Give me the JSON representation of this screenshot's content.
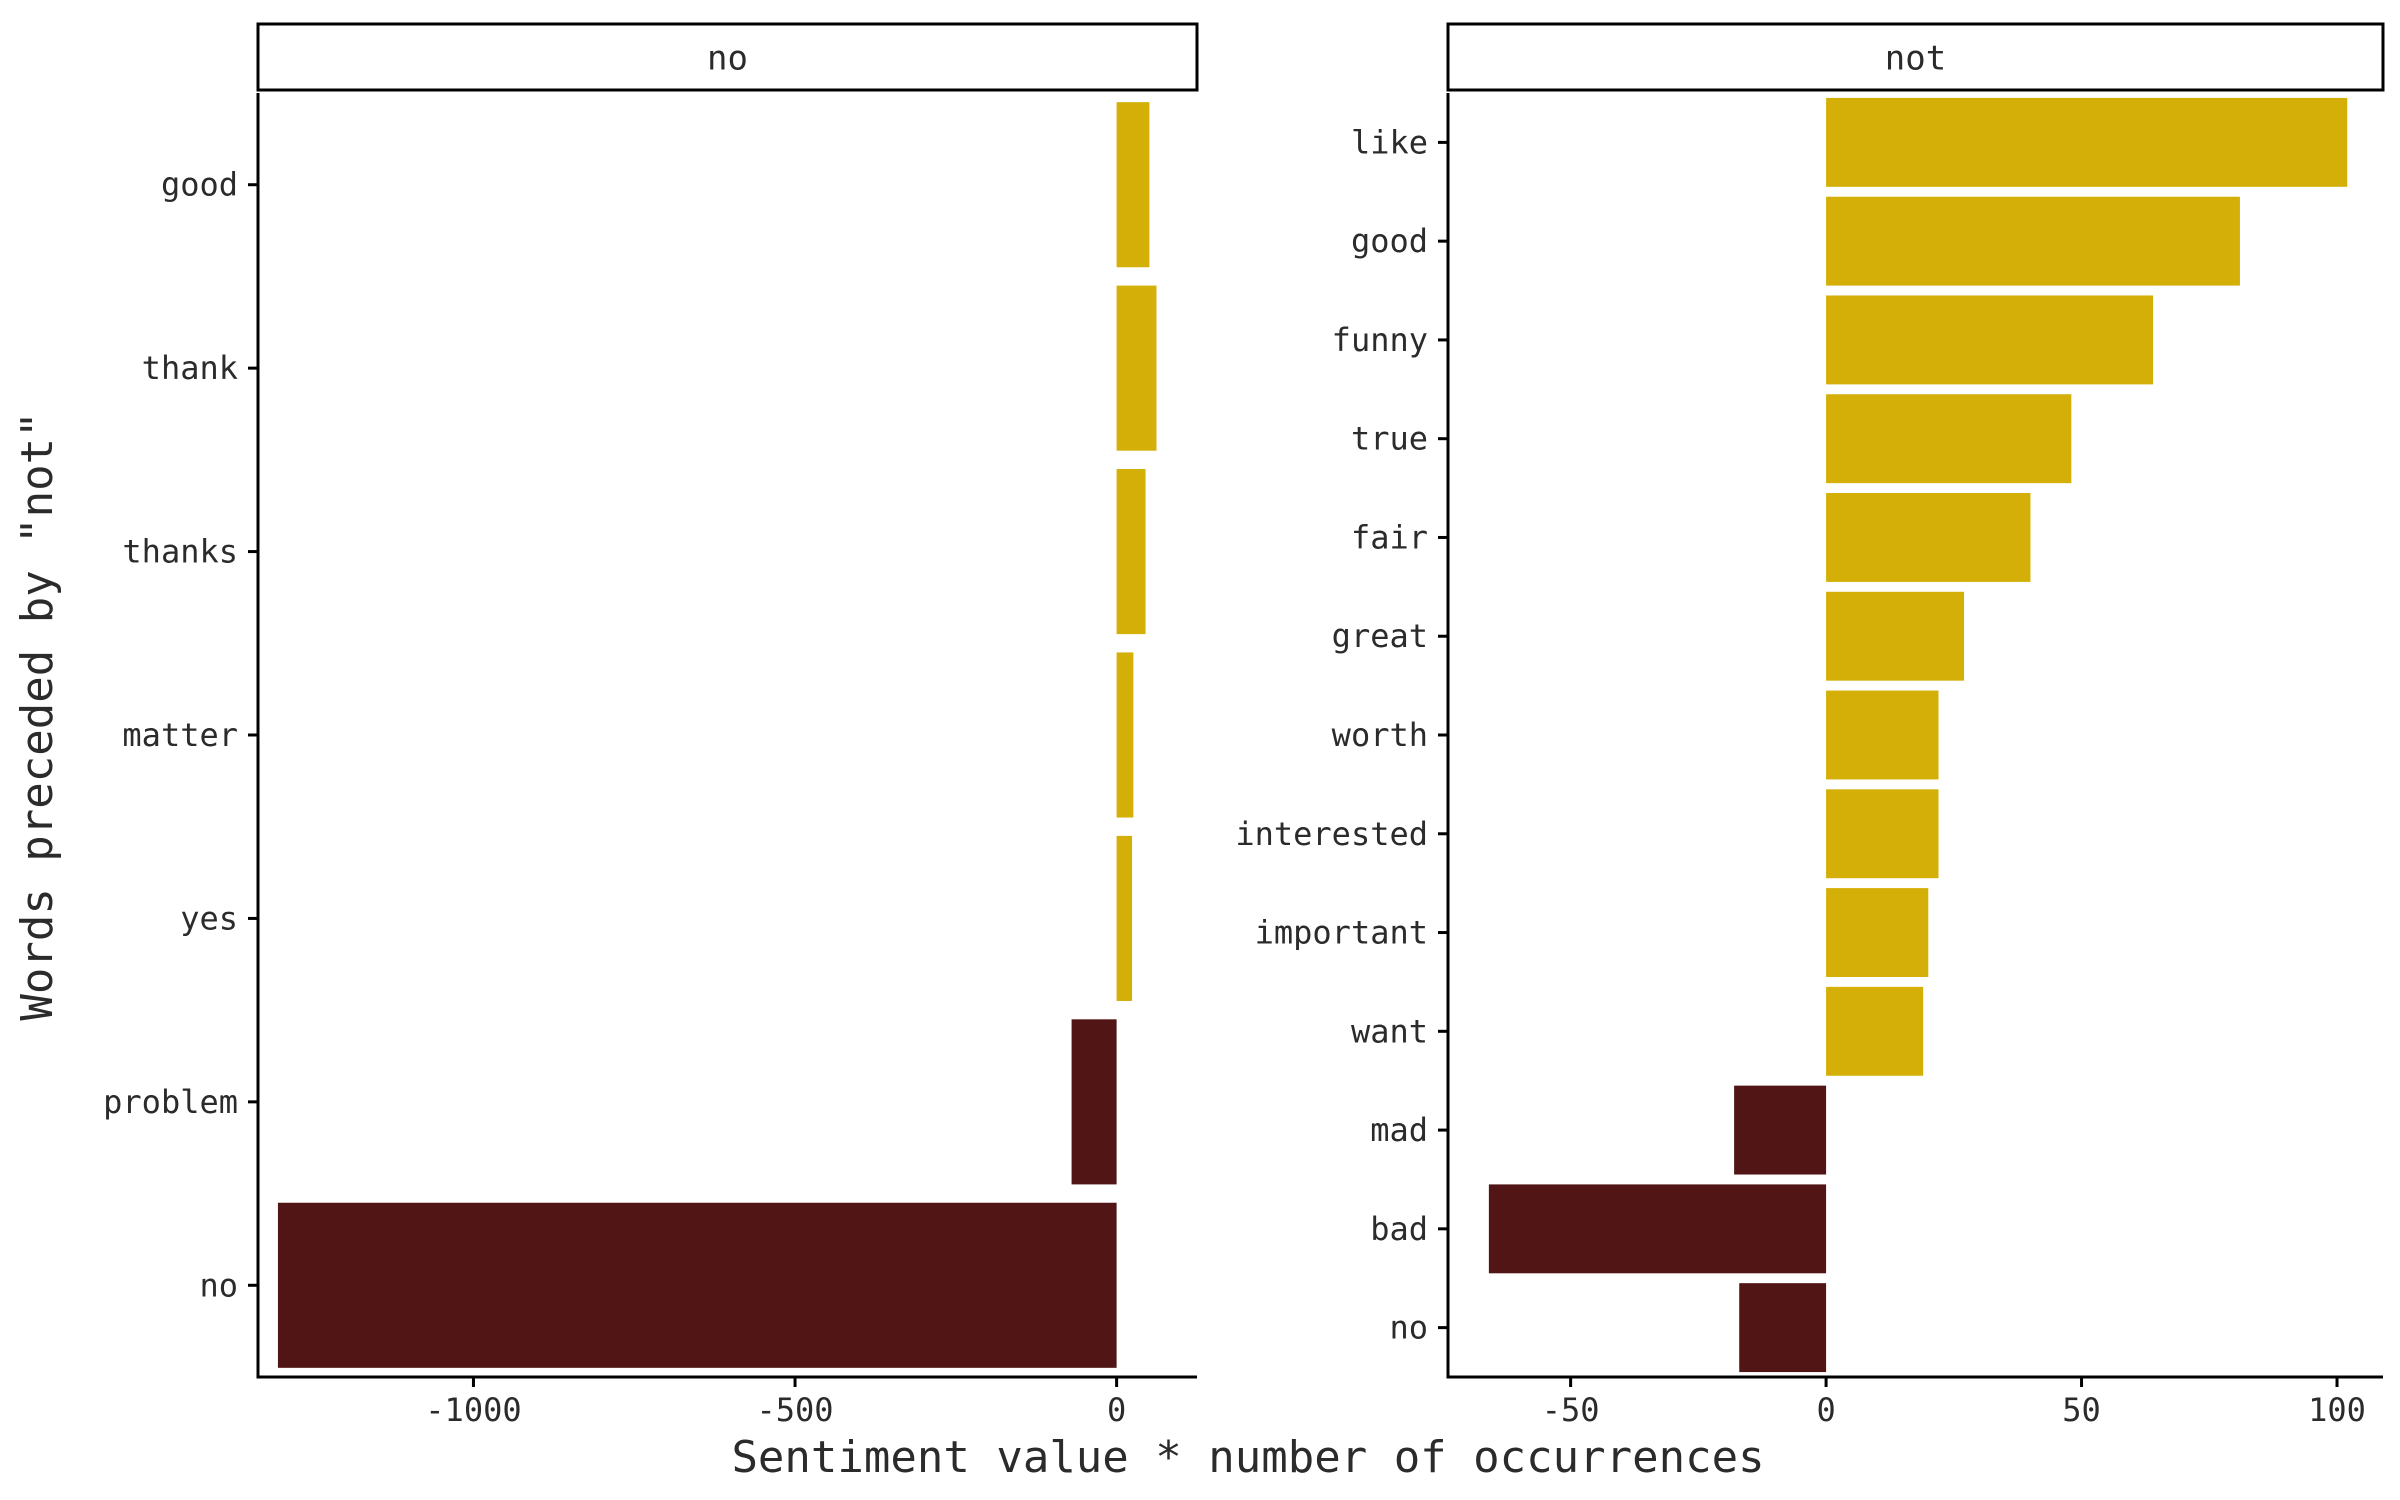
{
  "chart_data": {
    "type": "bar",
    "orientation": "horizontal",
    "facet": "panels",
    "xlabel": "Sentiment value * number of occurrences",
    "ylabel": "Words preceded by \"not\"",
    "colors": {
      "positive": "#D4AF07",
      "negative": "#511516"
    },
    "panels": [
      {
        "strip_label": "no",
        "xlim": [
          -1335,
          125
        ],
        "xticks": [
          -1000,
          -500,
          0
        ],
        "xtick_labels": [
          "-1000",
          "-500",
          "0"
        ],
        "categories": [
          "good",
          "thank",
          "thanks",
          "matter",
          "yes",
          "problem",
          "no"
        ],
        "values": [
          51,
          62,
          45,
          26,
          24,
          -70,
          -1304
        ]
      },
      {
        "strip_label": "not",
        "xlim": [
          -74,
          109
        ],
        "xticks": [
          -50,
          0,
          50,
          100
        ],
        "xtick_labels": [
          "-50",
          "0",
          "50",
          "100"
        ],
        "categories": [
          "like",
          "good",
          "funny",
          "true",
          "fair",
          "great",
          "worth",
          "interested",
          "important",
          "want",
          "mad",
          "bad",
          "no"
        ],
        "values": [
          102,
          81,
          64,
          48,
          40,
          27,
          22,
          22,
          20,
          19,
          -18,
          -66,
          -17
        ]
      }
    ]
  }
}
